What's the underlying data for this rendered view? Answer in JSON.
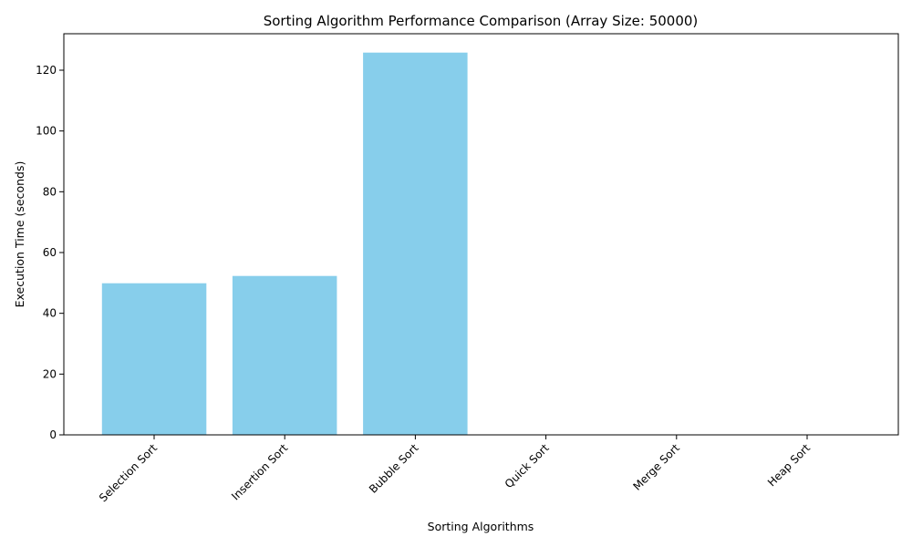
{
  "chart_data": {
    "type": "bar",
    "title": "Sorting Algorithm Performance Comparison (Array Size: 50000)",
    "xlabel": "Sorting Algorithms",
    "ylabel": "Execution Time (seconds)",
    "categories": [
      "Selection Sort",
      "Insertion Sort",
      "Bubble Sort",
      "Quick Sort",
      "Merge Sort",
      "Heap Sort"
    ],
    "values": [
      49.9,
      52.3,
      125.8,
      0.1,
      0.1,
      0.1
    ],
    "ylim": [
      0,
      132
    ],
    "yticks": [
      0,
      20,
      40,
      60,
      80,
      100,
      120
    ],
    "bar_color": "#87ceeb",
    "grid": false,
    "legend": "none"
  }
}
